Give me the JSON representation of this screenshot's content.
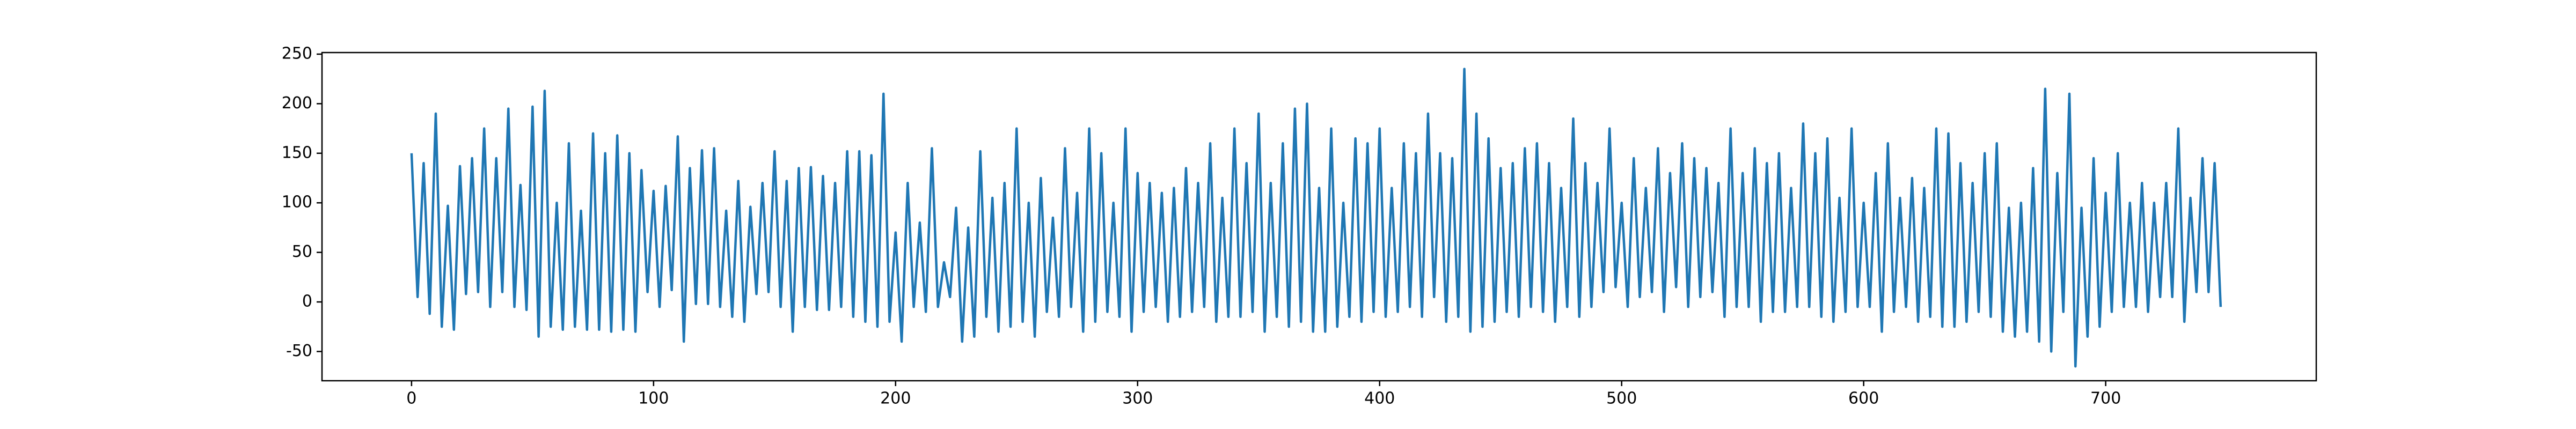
{
  "chart_data": {
    "type": "line",
    "color": "#1f77b4",
    "xlim": [
      -37,
      787
    ],
    "xticks": [
      0,
      100,
      200,
      300,
      400,
      500,
      600,
      700
    ],
    "ylim": [
      -79.5,
      251.6
    ],
    "yticks": [
      -50,
      0,
      50,
      100,
      150,
      200,
      250
    ],
    "x": [
      0,
      2.5,
      5,
      7.5,
      10,
      12.5,
      15,
      17.5,
      20,
      22.5,
      25,
      27.5,
      30,
      32.5,
      35,
      37.5,
      40,
      42.5,
      45,
      47.5,
      50,
      52.5,
      55,
      57.5,
      60,
      62.5,
      65,
      67.5,
      70,
      72.5,
      75,
      77.5,
      80,
      82.5,
      85,
      87.5,
      90,
      92.5,
      95,
      97.5,
      100,
      102.5,
      105,
      107.5,
      110,
      112.5,
      115,
      117.5,
      120,
      122.5,
      125,
      127.5,
      130,
      132.5,
      135,
      137.5,
      140,
      142.5,
      145,
      147.5,
      150,
      152.5,
      155,
      157.5,
      160,
      162.5,
      165,
      167.5,
      170,
      172.5,
      175,
      177.5,
      180,
      182.5,
      185,
      187.5,
      190,
      192.5,
      195,
      197.5,
      200,
      202.5,
      205,
      207.5,
      210,
      212.5,
      215,
      217.5,
      220,
      222.5,
      225,
      227.5,
      230,
      232.5,
      235,
      237.5,
      240,
      242.5,
      245,
      247.5,
      250,
      252.5,
      255,
      257.5,
      260,
      262.5,
      265,
      267.5,
      270,
      272.5,
      275,
      277.5,
      280,
      282.5,
      285,
      287.5,
      290,
      292.5,
      295,
      297.5,
      300,
      302.5,
      305,
      307.5,
      310,
      312.5,
      315,
      317.5,
      320,
      322.5,
      325,
      327.5,
      330,
      332.5,
      335,
      337.5,
      340,
      342.5,
      345,
      347.5,
      350,
      352.5,
      355,
      357.5,
      360,
      362.5,
      365,
      367.5,
      370,
      372.5,
      375,
      377.5,
      380,
      382.5,
      385,
      387.5,
      390,
      392.5,
      395,
      397.5,
      400,
      402.5,
      405,
      407.5,
      410,
      412.5,
      415,
      417.5,
      420,
      422.5,
      425,
      427.5,
      430,
      432.5,
      435,
      437.5,
      440,
      442.5,
      445,
      447.5,
      450,
      452.5,
      455,
      457.5,
      460,
      462.5,
      465,
      467.5,
      470,
      472.5,
      475,
      477.5,
      480,
      482.5,
      485,
      487.5,
      490,
      492.5,
      495,
      497.5,
      500,
      502.5,
      505,
      507.5,
      510,
      512.5,
      515,
      517.5,
      520,
      522.5,
      525,
      527.5,
      530,
      532.5,
      535,
      537.5,
      540,
      542.5,
      545,
      547.5,
      550,
      552.5,
      555,
      557.5,
      560,
      562.5,
      565,
      567.5,
      570,
      572.5,
      575,
      577.5,
      580,
      582.5,
      585,
      587.5,
      590,
      592.5,
      595,
      597.5,
      600,
      602.5,
      605,
      607.5,
      610,
      612.5,
      615,
      617.5,
      620,
      622.5,
      625,
      627.5,
      630,
      632.5,
      635,
      637.5,
      640,
      642.5,
      645,
      647.5,
      650,
      652.5,
      655,
      657.5,
      660,
      662.5,
      665,
      667.5,
      670,
      672.5,
      675,
      677.5,
      680,
      682.5,
      685,
      687.5,
      690,
      692.5,
      695,
      697.5,
      700,
      702.5,
      705,
      707.5,
      710,
      712.5,
      715,
      717.5,
      720,
      722.5,
      725,
      727.5,
      730,
      732.5,
      735,
      737.5,
      740,
      742.5,
      745,
      747.5
    ],
    "values": [
      150,
      5,
      140,
      -12,
      190,
      -25,
      97,
      -28,
      137,
      8,
      145,
      10,
      175,
      -5,
      145,
      10,
      195,
      -5,
      118,
      -8,
      197,
      -35,
      213,
      -25,
      100,
      -28,
      160,
      -25,
      92,
      -28,
      170,
      -28,
      150,
      -30,
      168,
      -28,
      150,
      -30,
      133,
      10,
      112,
      -5,
      117,
      12,
      167,
      -40,
      135,
      -2,
      153,
      -2,
      155,
      -5,
      92,
      -15,
      122,
      -20,
      96,
      8,
      120,
      10,
      152,
      -5,
      122,
      -30,
      135,
      -5,
      136,
      -8,
      127,
      -8,
      120,
      -5,
      152,
      -15,
      152,
      -20,
      148,
      -25,
      210,
      -20,
      70,
      -40,
      120,
      -5,
      80,
      -10,
      155,
      -5,
      40,
      5,
      95,
      -40,
      75,
      -35,
      152,
      -15,
      105,
      -30,
      120,
      -25,
      175,
      -20,
      100,
      -35,
      125,
      -10,
      85,
      -15,
      155,
      -5,
      110,
      -30,
      175,
      -20,
      150,
      -10,
      100,
      -15,
      175,
      -30,
      130,
      -10,
      120,
      -5,
      110,
      -20,
      115,
      -15,
      135,
      -10,
      120,
      -5,
      160,
      -20,
      105,
      -15,
      175,
      -15,
      140,
      -10,
      190,
      -30,
      120,
      -15,
      160,
      -25,
      195,
      -20,
      200,
      -30,
      115,
      -30,
      175,
      -25,
      100,
      -15,
      165,
      -20,
      160,
      -10,
      175,
      -15,
      115,
      -10,
      160,
      -5,
      150,
      -15,
      190,
      5,
      150,
      -20,
      145,
      -15,
      235,
      -30,
      190,
      -25,
      165,
      -20,
      135,
      -10,
      140,
      -15,
      155,
      -5,
      160,
      -10,
      140,
      -20,
      115,
      -5,
      185,
      -15,
      140,
      -5,
      120,
      10,
      175,
      15,
      100,
      -5,
      145,
      5,
      115,
      10,
      155,
      -10,
      130,
      15,
      160,
      -5,
      145,
      5,
      135,
      10,
      120,
      -15,
      175,
      -5,
      130,
      -5,
      155,
      -20,
      140,
      -10,
      150,
      -10,
      115,
      -5,
      180,
      -5,
      150,
      -15,
      165,
      -20,
      105,
      -10,
      175,
      -5,
      100,
      -5,
      130,
      -30,
      160,
      -10,
      105,
      -5,
      125,
      -20,
      115,
      -15,
      175,
      -25,
      170,
      -25,
      140,
      -20,
      120,
      -10,
      150,
      -15,
      160,
      -30,
      95,
      -35,
      100,
      -30,
      135,
      -40,
      215,
      -50,
      130,
      -10,
      210,
      -65,
      95,
      -35,
      145,
      -25,
      110,
      -10,
      150,
      -5,
      100,
      -5,
      120,
      -10,
      100,
      5,
      120,
      5,
      175,
      -20,
      105,
      10,
      145,
      10,
      140,
      -5
    ]
  }
}
